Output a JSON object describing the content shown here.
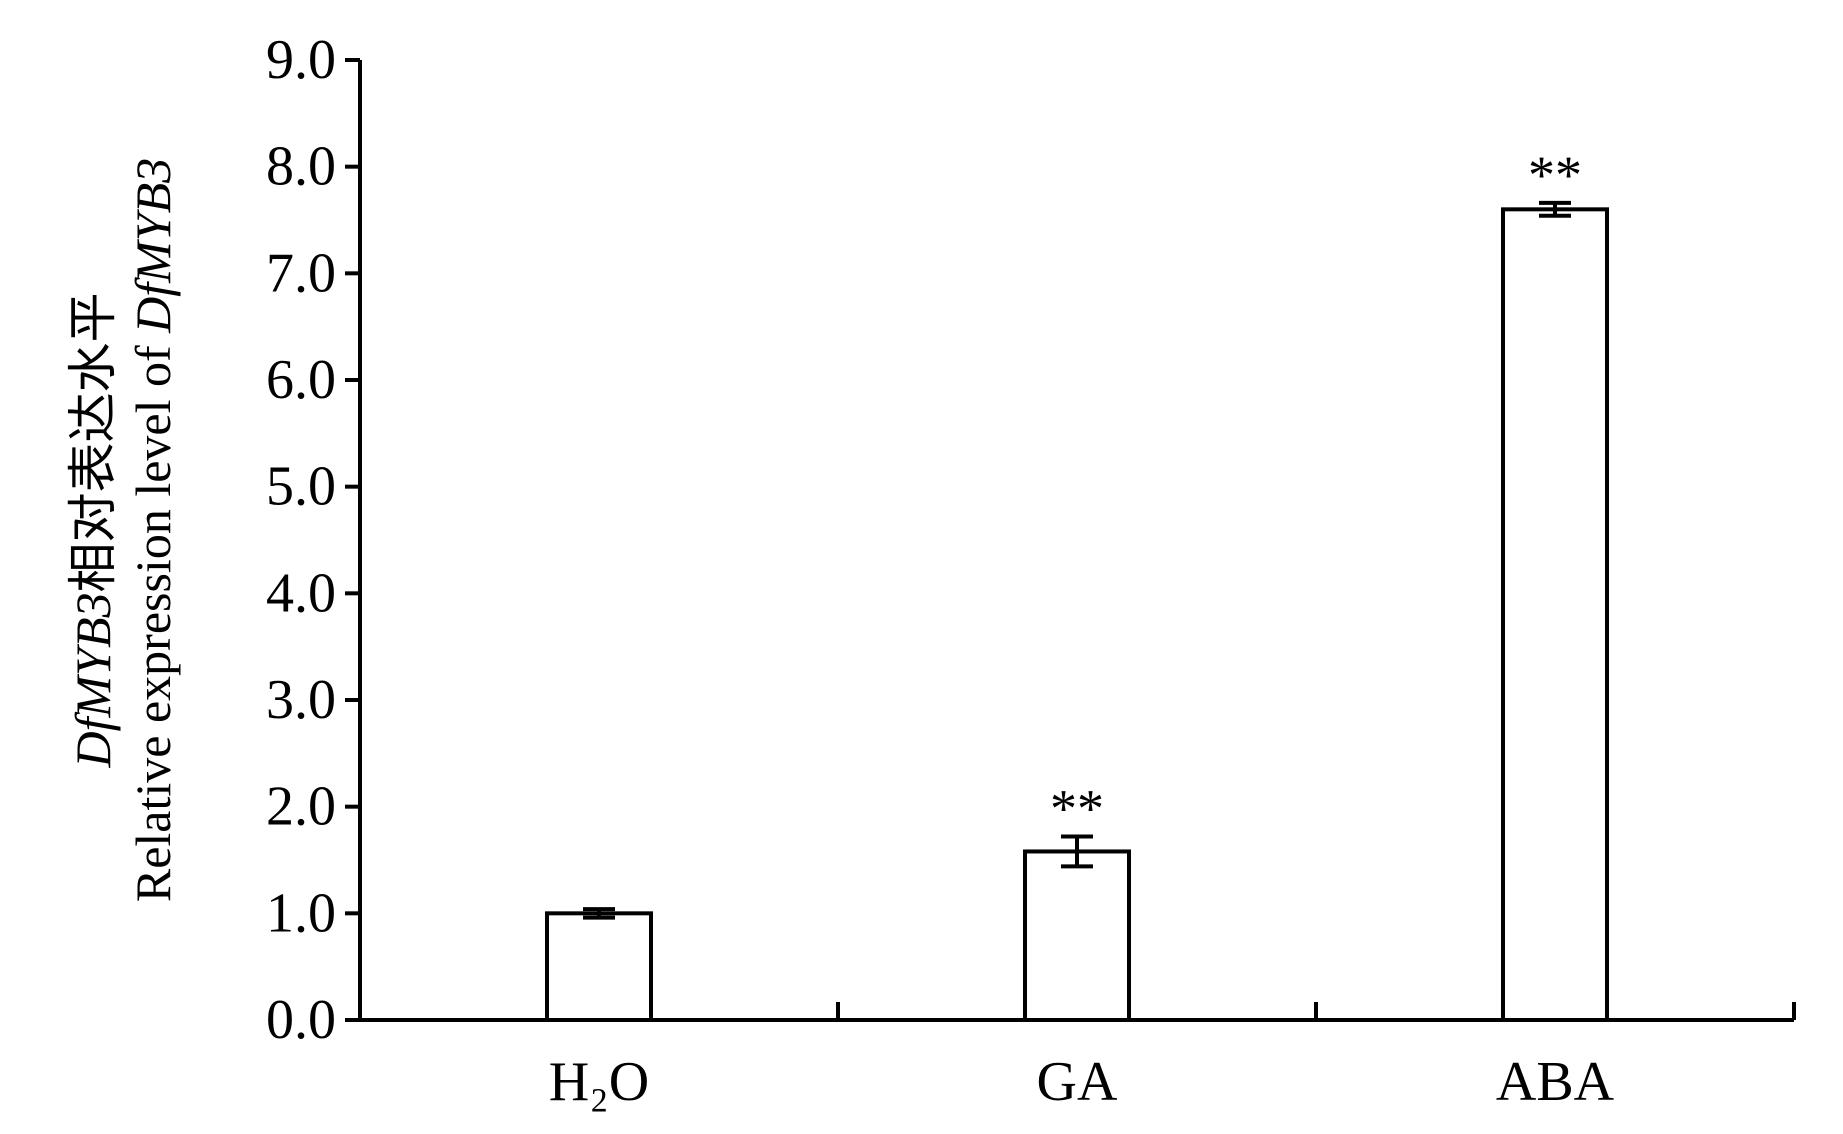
{
  "chart_data": {
    "type": "bar",
    "categories": [
      "H₂O",
      "GA",
      "ABA"
    ],
    "values": [
      1.0,
      1.58,
      7.6
    ],
    "errors": [
      0.04,
      0.14,
      0.06
    ],
    "significance": [
      "",
      "**",
      "**"
    ],
    "ylabel_line1_gene": "DfMYB3",
    "ylabel_line1_text": "相对表达水平",
    "ylabel_line2_text": "Relative expression level of ",
    "ylabel_line2_gene": "DfMYB3",
    "ylim": [
      0,
      9
    ],
    "yticks": [
      "0.0",
      "1.0",
      "2.0",
      "3.0",
      "4.0",
      "5.0",
      "6.0",
      "7.0",
      "8.0",
      "9.0"
    ],
    "bar_fill": "#ffffff",
    "bar_stroke": "#000000",
    "grid": false,
    "legend": false
  }
}
